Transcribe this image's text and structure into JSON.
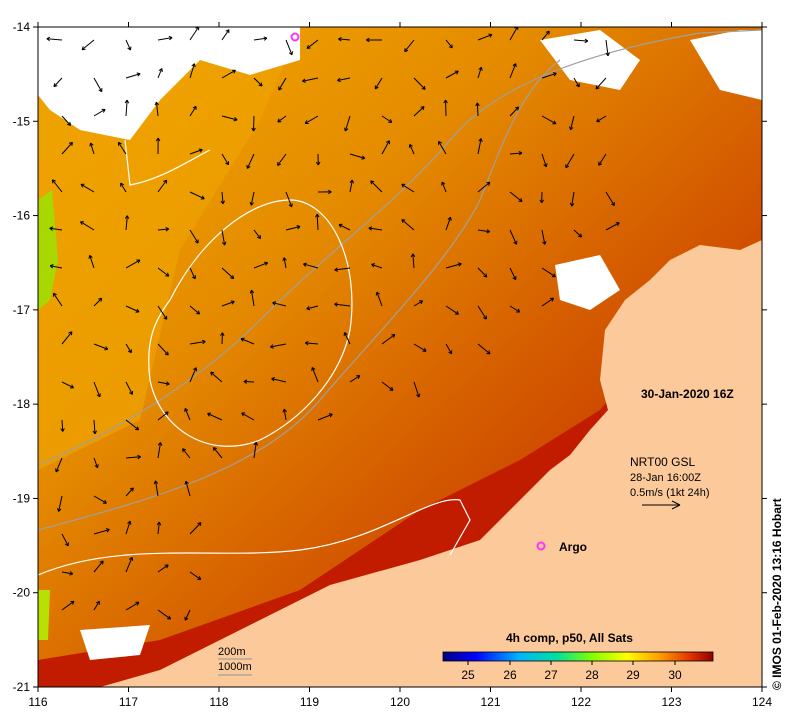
{
  "map": {
    "date_label": "30-Jan-2020 16Z",
    "current_info": {
      "line1": "NRT00 GSL",
      "line2": "28-Jan 16:00Z",
      "line3": "0.5m/s (1kt 24h)"
    },
    "argo_label": "Argo",
    "isobaths": {
      "shallow": "200m",
      "deep": "1000m"
    },
    "colorbar": {
      "title": "4h comp, p50, All Sats",
      "ticks": [
        "25",
        "26",
        "27",
        "28",
        "29",
        "30"
      ]
    },
    "x_ticks": [
      "116",
      "117",
      "118",
      "119",
      "120",
      "121",
      "122",
      "123",
      "124"
    ],
    "y_ticks": [
      "-14",
      "-15",
      "-16",
      "-17",
      "-18",
      "-19",
      "-20",
      "-21"
    ],
    "credit": "© IMOS 01-Feb-2020 13:16 Hobart",
    "colors": {
      "land": "#fcc99a",
      "warm": "#c21a00",
      "mid": "#e07800",
      "cool": "#f2a300",
      "argo": "#ff33ff"
    }
  }
}
